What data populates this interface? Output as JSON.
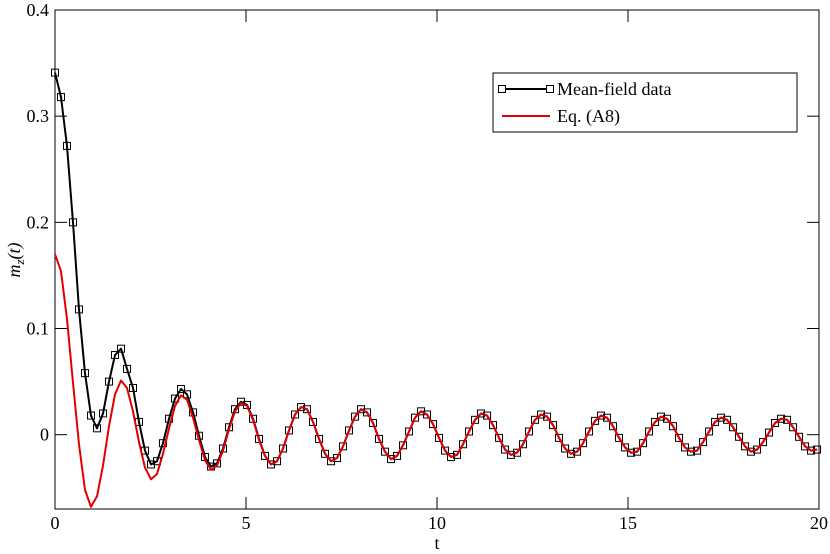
{
  "chart_data": {
    "type": "line",
    "xlabel": "t",
    "ylabel": {
      "base": "m",
      "sub": "z",
      "rest": "(t)"
    },
    "xlim": [
      0,
      20
    ],
    "xticks": [
      0,
      5,
      10,
      15,
      20
    ],
    "ylim": [
      -0.07,
      0.4
    ],
    "yticks": [
      0,
      0.1,
      0.2,
      0.3,
      0.4
    ],
    "legend": "upper right",
    "x": [
      0,
      0.157,
      0.314,
      0.471,
      0.628,
      0.785,
      0.942,
      1.1,
      1.257,
      1.414,
      1.571,
      1.728,
      1.885,
      2.042,
      2.199,
      2.356,
      2.513,
      2.67,
      2.827,
      2.985,
      3.142,
      3.299,
      3.456,
      3.613,
      3.77,
      3.927,
      4.084,
      4.241,
      4.398,
      4.555,
      4.712,
      4.869,
      5.027,
      5.184,
      5.341,
      5.498,
      5.655,
      5.812,
      5.969,
      6.126,
      6.283,
      6.44,
      6.597,
      6.754,
      6.912,
      7.069,
      7.226,
      7.383,
      7.54,
      7.697,
      7.854,
      8.011,
      8.168,
      8.325,
      8.482,
      8.639,
      8.796,
      8.954,
      9.111,
      9.268,
      9.425,
      9.582,
      9.739,
      9.896,
      10.053,
      10.21,
      10.367,
      10.524,
      10.681,
      10.838,
      10.996,
      11.153,
      11.31,
      11.467,
      11.624,
      11.781,
      11.938,
      12.095,
      12.252,
      12.409,
      12.566,
      12.723,
      12.881,
      13.038,
      13.195,
      13.352,
      13.509,
      13.666,
      13.823,
      13.98,
      14.137,
      14.294,
      14.451,
      14.608,
      14.765,
      14.923,
      15.08,
      15.237,
      15.394,
      15.551,
      15.708,
      15.865,
      16.022,
      16.179,
      16.336,
      16.493,
      16.65,
      16.808,
      16.965,
      17.122,
      17.279,
      17.436,
      17.593,
      17.75,
      17.907,
      18.064,
      18.221,
      18.378,
      18.535,
      18.692,
      18.85,
      19.007,
      19.164,
      19.321,
      19.478,
      19.635,
      19.792,
      19.949
    ],
    "series": [
      {
        "name": "Mean-field data",
        "color": "#000000",
        "marker": "square",
        "values": [
          0.341,
          0.318,
          0.272,
          0.2,
          0.118,
          0.058,
          0.018,
          0.006,
          0.02,
          0.05,
          0.075,
          0.081,
          0.062,
          0.044,
          0.012,
          -0.015,
          -0.028,
          -0.025,
          -0.008,
          0.015,
          0.034,
          0.043,
          0.038,
          0.021,
          -0.001,
          -0.021,
          -0.03,
          -0.027,
          -0.013,
          0.007,
          0.024,
          0.031,
          0.028,
          0.015,
          -0.004,
          -0.02,
          -0.028,
          -0.025,
          -0.013,
          0.004,
          0.019,
          0.026,
          0.024,
          0.012,
          -0.004,
          -0.018,
          -0.025,
          -0.022,
          -0.011,
          0.004,
          0.017,
          0.024,
          0.021,
          0.011,
          -0.004,
          -0.016,
          -0.023,
          -0.02,
          -0.01,
          0.003,
          0.016,
          0.022,
          0.019,
          0.01,
          -0.003,
          -0.015,
          -0.021,
          -0.019,
          -0.009,
          0.003,
          0.014,
          0.02,
          0.018,
          0.009,
          -0.003,
          -0.014,
          -0.019,
          -0.017,
          -0.009,
          0.003,
          0.014,
          0.019,
          0.017,
          0.009,
          -0.003,
          -0.013,
          -0.018,
          -0.016,
          -0.008,
          0.003,
          0.013,
          0.018,
          0.016,
          0.008,
          -0.003,
          -0.012,
          -0.017,
          -0.016,
          -0.008,
          0.003,
          0.012,
          0.017,
          0.015,
          0.008,
          -0.003,
          -0.012,
          -0.016,
          -0.015,
          -0.007,
          0.003,
          0.012,
          0.016,
          0.014,
          0.007,
          -0.002,
          -0.011,
          -0.016,
          -0.014,
          -0.007,
          0.002,
          0.011,
          0.015,
          0.014,
          0.007,
          -0.002,
          -0.011,
          -0.015,
          -0.014
        ]
      },
      {
        "name": "Eq. (A8)",
        "color": "#e00000",
        "marker": "none",
        "values": [
          0.17,
          0.154,
          0.109,
          0.049,
          -0.009,
          -0.052,
          -0.068,
          -0.058,
          -0.029,
          0.008,
          0.038,
          0.051,
          0.044,
          0.022,
          -0.007,
          -0.031,
          -0.042,
          -0.037,
          -0.018,
          0.006,
          0.027,
          0.037,
          0.033,
          0.016,
          -0.005,
          -0.024,
          -0.033,
          -0.029,
          -0.015,
          0.005,
          0.022,
          0.03,
          0.027,
          0.014,
          -0.005,
          -0.02,
          -0.028,
          -0.025,
          -0.013,
          0.004,
          0.019,
          0.026,
          0.024,
          0.012,
          -0.004,
          -0.018,
          -0.025,
          -0.022,
          -0.011,
          0.004,
          0.017,
          0.024,
          0.021,
          0.011,
          -0.004,
          -0.016,
          -0.023,
          -0.02,
          -0.01,
          0.003,
          0.016,
          0.022,
          0.019,
          0.01,
          -0.003,
          -0.015,
          -0.021,
          -0.019,
          -0.009,
          0.003,
          0.014,
          0.02,
          0.018,
          0.009,
          -0.003,
          -0.014,
          -0.019,
          -0.017,
          -0.009,
          0.003,
          0.014,
          0.019,
          0.017,
          0.009,
          -0.003,
          -0.013,
          -0.018,
          -0.016,
          -0.008,
          0.003,
          0.013,
          0.018,
          0.016,
          0.008,
          -0.003,
          -0.012,
          -0.017,
          -0.016,
          -0.008,
          0.003,
          0.012,
          0.017,
          0.015,
          0.008,
          -0.003,
          -0.012,
          -0.016,
          -0.015,
          -0.007,
          0.003,
          0.012,
          0.016,
          0.014,
          0.007,
          -0.002,
          -0.011,
          -0.016,
          -0.014,
          -0.007,
          0.002,
          0.011,
          0.015,
          0.014,
          0.007,
          -0.002,
          -0.011,
          -0.015,
          -0.014
        ]
      }
    ]
  }
}
